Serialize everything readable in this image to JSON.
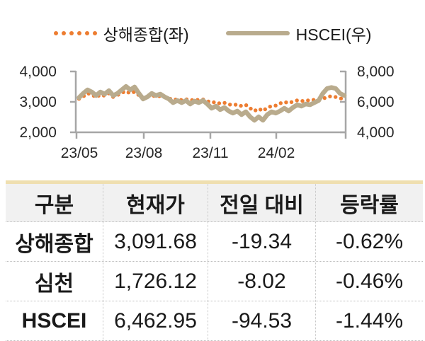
{
  "legend": {
    "items": [
      {
        "label": "상해종합(좌)",
        "marker": "dotted",
        "color": "#ED7D31"
      },
      {
        "label": "HSCEI(우)",
        "marker": "line",
        "color": "#B9AB8D"
      }
    ]
  },
  "chart_data": {
    "type": "line",
    "title": "",
    "xlabel": "",
    "ylabel_left": "",
    "ylabel_right": "",
    "grid": false,
    "legend_position": "top",
    "x_tick_labels": [
      "23/05",
      "23/08",
      "23/11",
      "24/02"
    ],
    "left_axis": {
      "tick_labels": [
        "4,000",
        "3,000",
        "2,000"
      ],
      "min": 2000,
      "max": 4000
    },
    "right_axis": {
      "tick_labels": [
        "8,000",
        "6,000",
        "4,000"
      ],
      "min": 4000,
      "max": 8000
    },
    "series": [
      {
        "name": "상해종합(좌)",
        "axis": "left",
        "style": "dotted",
        "color": "#ED7D31",
        "values": [
          3100,
          3180,
          3280,
          3240,
          3150,
          3240,
          3200,
          3280,
          3160,
          3220,
          3300,
          3350,
          3280,
          3330,
          3220,
          3130,
          3160,
          3220,
          3170,
          3190,
          3150,
          3120,
          3060,
          3090,
          3060,
          3090,
          3040,
          3080,
          3060,
          3080,
          3030,
          2970,
          3000,
          2940,
          2970,
          2920,
          2890,
          2920,
          2860,
          2900,
          2790,
          2700,
          2780,
          2700,
          2810,
          2860,
          2880,
          2950,
          3000,
          2960,
          3010,
          3050,
          3020,
          3060,
          3040,
          3070,
          3080,
          3100,
          3160,
          3190,
          3160,
          3120,
          3090
        ]
      },
      {
        "name": "HSCEI(우)",
        "axis": "right",
        "style": "solid",
        "color": "#B9AB8D",
        "values": [
          6280,
          6560,
          6790,
          6650,
          6420,
          6650,
          6510,
          6740,
          6420,
          6560,
          6790,
          7020,
          6790,
          6980,
          6560,
          6190,
          6330,
          6560,
          6420,
          6510,
          6330,
          6190,
          5950,
          6090,
          5950,
          6090,
          5860,
          6050,
          5950,
          6090,
          5860,
          5580,
          5720,
          5490,
          5630,
          5400,
          5260,
          5400,
          5160,
          5350,
          5020,
          4790,
          5020,
          4790,
          5160,
          5350,
          5260,
          5400,
          5580,
          5400,
          5630,
          5810,
          5720,
          5860,
          5810,
          5950,
          6090,
          6560,
          6880,
          6950,
          6880,
          6560,
          6420
        ]
      }
    ]
  },
  "table": {
    "headers": [
      "구분",
      "현재가",
      "전일 대비",
      "등락률"
    ],
    "rows": [
      [
        "상해종합",
        "3,091.68",
        "-19.34",
        "-0.62%"
      ],
      [
        "심천",
        "1,726.12",
        "-8.02",
        "-0.46%"
      ],
      [
        "HSCEI",
        "6,462.95",
        "-94.53",
        "-1.44%"
      ]
    ]
  },
  "colors": {
    "series_shanghai": "#ED7D31",
    "series_hscei": "#B9AB8D",
    "axis": "#A6A6A6",
    "axis_text": "#262626",
    "table_text": "#1A1A1A",
    "table_top_border": "#EFDFB0",
    "table_header_bg": "#F1F1F1",
    "table_divider": "#C6C6C6"
  }
}
